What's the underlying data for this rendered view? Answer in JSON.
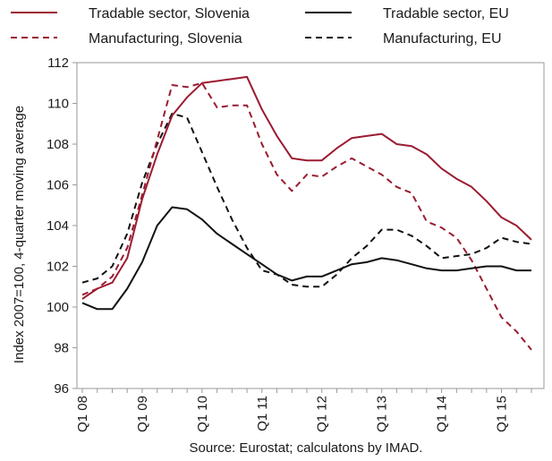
{
  "chart_data": {
    "type": "line",
    "title": "",
    "xlabel": "",
    "ylabel": "Index 2007=100, 4-quarter moving average",
    "ylim": [
      96,
      112
    ],
    "yticks": [
      "96",
      "98",
      "100",
      "102",
      "104",
      "106",
      "108",
      "110",
      "112"
    ],
    "x": [
      "Q1 08",
      "Q2 08",
      "Q3 08",
      "Q4 08",
      "Q1 09",
      "Q2 09",
      "Q3 09",
      "Q4 09",
      "Q1 10",
      "Q2 10",
      "Q3 10",
      "Q4 10",
      "Q1 11",
      "Q2 11",
      "Q3 11",
      "Q4 11",
      "Q1 12",
      "Q2 12",
      "Q3 12",
      "Q4 12",
      "Q1 13",
      "Q2 13",
      "Q3 13",
      "Q4 13",
      "Q1 14",
      "Q2 14",
      "Q3 14",
      "Q4 14",
      "Q1 15",
      "Q2 15",
      "Q3 15"
    ],
    "xtick_labels": [
      "Q1 08",
      "Q1 09",
      "Q1 10",
      "Q1 11",
      "Q1 12",
      "Q1 13",
      "Q1 14",
      "Q1 15"
    ],
    "grid": false,
    "legend_position": "top",
    "series": [
      {
        "name": "Tradable sector, Slovenia",
        "color": "#9b1b30",
        "dash": "solid",
        "values": [
          100.4,
          100.9,
          101.2,
          102.4,
          105.3,
          107.5,
          109.4,
          110.3,
          111.0,
          111.1,
          111.2,
          111.3,
          109.7,
          108.4,
          107.3,
          107.2,
          107.2,
          107.8,
          108.3,
          108.4,
          108.5,
          108.0,
          107.9,
          107.5,
          106.8,
          106.3,
          105.9,
          105.2,
          104.4,
          104.0,
          103.3
        ]
      },
      {
        "name": "Tradable sector, EU",
        "color": "#111111",
        "dash": "solid",
        "values": [
          100.2,
          99.9,
          99.9,
          100.9,
          102.2,
          104.0,
          104.9,
          104.8,
          104.3,
          103.6,
          103.1,
          102.6,
          102.1,
          101.6,
          101.3,
          101.5,
          101.5,
          101.8,
          102.1,
          102.2,
          102.4,
          102.3,
          102.1,
          101.9,
          101.8,
          101.8,
          101.9,
          102.0,
          102.0,
          101.8,
          101.8
        ]
      },
      {
        "name": "Manufacturing, Slovenia",
        "color": "#9b1b30",
        "dash": "dashed",
        "values": [
          100.6,
          100.9,
          101.5,
          102.9,
          105.5,
          108.2,
          110.9,
          110.8,
          111.0,
          109.8,
          109.9,
          109.9,
          108.0,
          106.5,
          105.7,
          106.5,
          106.4,
          106.9,
          107.3,
          106.9,
          106.5,
          105.9,
          105.6,
          104.2,
          103.9,
          103.4,
          102.3,
          100.9,
          99.5,
          98.8,
          97.9
        ]
      },
      {
        "name": "Manufacturing, EU",
        "color": "#111111",
        "dash": "dashed",
        "values": [
          101.2,
          101.4,
          102.0,
          103.6,
          106.1,
          108.0,
          109.5,
          109.3,
          107.6,
          105.9,
          104.3,
          102.9,
          101.8,
          101.6,
          101.1,
          101.0,
          101.0,
          101.6,
          102.4,
          103.0,
          103.8,
          103.8,
          103.5,
          103.0,
          102.4,
          102.5,
          102.6,
          102.9,
          103.4,
          103.2,
          103.1
        ]
      }
    ],
    "source": "Source: Eurostat; calculatons by IMAD."
  }
}
